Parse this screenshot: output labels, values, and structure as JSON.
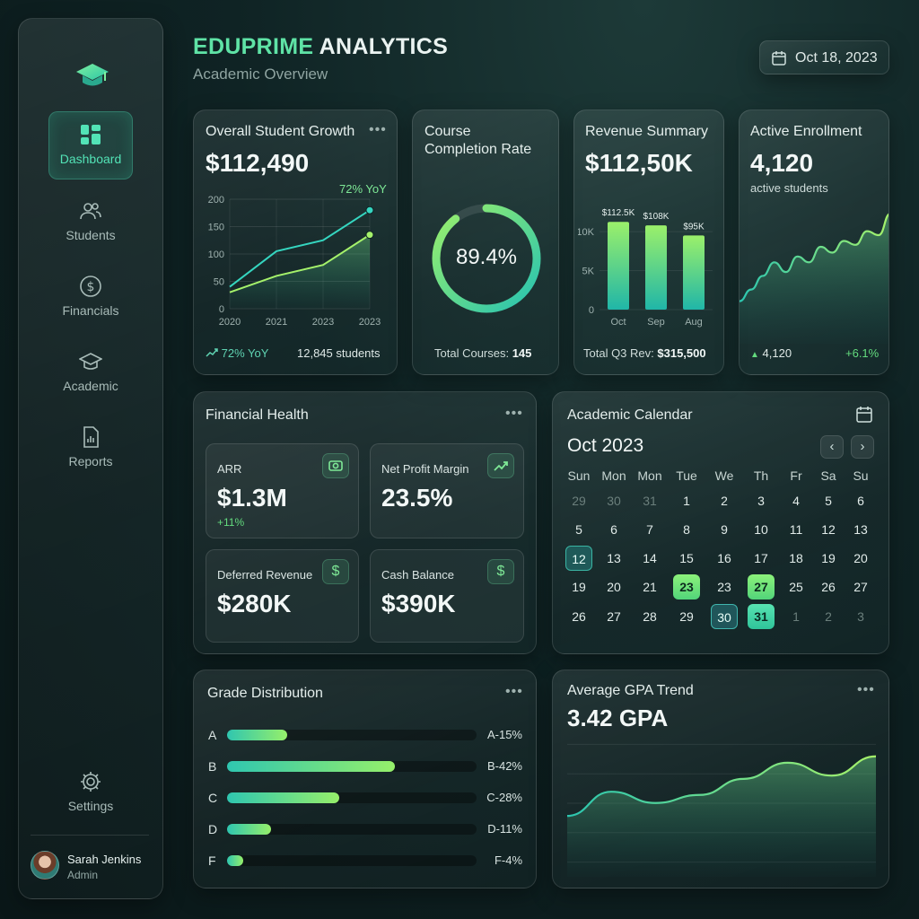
{
  "header": {
    "title_part1": "EDUPRIME",
    "title_part2": " ANALYTICS",
    "subtitle": "Academic Overview",
    "date": "Oct 18, 2023"
  },
  "sidebar": {
    "items": [
      {
        "label": "Dashboard",
        "icon": "dashboard-icon",
        "active": true
      },
      {
        "label": "Students",
        "icon": "users-icon"
      },
      {
        "label": "Financials",
        "icon": "dollar-icon"
      },
      {
        "label": "Academic",
        "icon": "graduation-cap-icon"
      },
      {
        "label": "Reports",
        "icon": "report-icon"
      }
    ],
    "settings_label": "Settings",
    "user": {
      "name": "Sarah Jenkins",
      "role": "Admin"
    }
  },
  "growth": {
    "title": "Overall Student Growth",
    "value": "$112,490",
    "yoy_label": "72% YoY",
    "footer_left": "72% YoY",
    "footer_right": "12,845 students"
  },
  "completion": {
    "title_line1": "Course",
    "title_line2": "Completion Rate",
    "value": "89.4%",
    "percent": 89.4,
    "footer_label": "Total Courses: ",
    "footer_value": "145"
  },
  "revenue": {
    "title": "Revenue Summary",
    "value": "$112,50K",
    "footer_label": "Total Q3 Rev: ",
    "footer_value": "$315,500"
  },
  "enrollment": {
    "title": "Active Enrollment",
    "value": "4,120",
    "caption": "active students",
    "footer_left": "4,120",
    "footer_right": "+6.1%"
  },
  "financial_health": {
    "title": "Financial Health",
    "tiles": [
      {
        "label": "ARR",
        "value": "$1.3M",
        "delta": "+11%",
        "icon": "camera-icon"
      },
      {
        "label": "Net Profit Margin",
        "value": "23.5%",
        "icon": "trend-up-icon"
      },
      {
        "label": "Deferred Revenue",
        "value": "$280K",
        "icon": "dollar-icon"
      },
      {
        "label": "Cash Balance",
        "value": "$390K",
        "icon": "dollar-icon"
      }
    ],
    "dollar_glyph": "$"
  },
  "calendar": {
    "title": "Academic Calendar",
    "month": "Oct 2023",
    "prev": "‹",
    "next": "›",
    "weekdays": [
      "Sun",
      "Mon",
      "Mon",
      "Tue",
      "We",
      "Th",
      "Fr",
      "Sa",
      "Su"
    ],
    "weeks": [
      [
        "29",
        "30",
        "31",
        "1",
        "2",
        "3",
        "4",
        "5",
        "6"
      ],
      [
        "5",
        "6",
        "7",
        "8",
        "9",
        "10",
        "11",
        "12",
        "13"
      ],
      [
        "12",
        "13",
        "14",
        "15",
        "16",
        "17",
        "18",
        "19",
        "20"
      ],
      [
        "19",
        "20",
        "21",
        "23",
        "23",
        "27",
        "25",
        "26",
        "27"
      ],
      [
        "26",
        "27",
        "28",
        "29",
        "30",
        "31",
        "1",
        "2",
        "3"
      ]
    ]
  },
  "grades": {
    "title": "Grade Distribution",
    "rows": [
      {
        "letter": "A",
        "label": "A-15%",
        "pct": 15
      },
      {
        "letter": "B",
        "label": "B-42%",
        "pct": 42
      },
      {
        "letter": "C",
        "label": "C-28%",
        "pct": 28
      },
      {
        "letter": "D",
        "label": "D-11%",
        "pct": 11
      },
      {
        "letter": "F",
        "label": "F-4%",
        "pct": 4
      }
    ]
  },
  "gpa": {
    "title": "Average GPA Trend",
    "value": "3.42 GPA"
  },
  "chart_data": [
    {
      "type": "area",
      "x": [
        "2020",
        "2021",
        "2023",
        "2023"
      ],
      "series": [
        {
          "values": [
            40,
            105,
            125,
            180
          ]
        },
        {
          "values": [
            30,
            60,
            80,
            135
          ]
        }
      ],
      "yticks": [
        "200",
        "150",
        "100",
        "50",
        "0"
      ],
      "ylim": [
        0,
        200
      ],
      "grid": true
    },
    {
      "type": "bar",
      "categories": [
        "Oct",
        "Sep",
        "Aug"
      ],
      "values": [
        112.5,
        108,
        95
      ],
      "data_labels": [
        "$112.5K",
        "$108K",
        "$95K"
      ],
      "yticks": [
        "10K",
        "5K",
        "0"
      ],
      "ylim": [
        0,
        13
      ]
    },
    {
      "type": "area",
      "values": [
        3.0,
        3.12,
        3.26,
        3.4,
        3.3,
        3.46,
        3.4,
        3.56,
        3.5,
        3.62,
        3.58,
        3.72,
        3.68,
        3.9
      ],
      "grid": false
    },
    {
      "type": "area",
      "values": [
        3.25,
        3.4,
        3.33,
        3.38,
        3.48,
        3.58,
        3.5,
        3.62
      ],
      "grid": true
    }
  ]
}
